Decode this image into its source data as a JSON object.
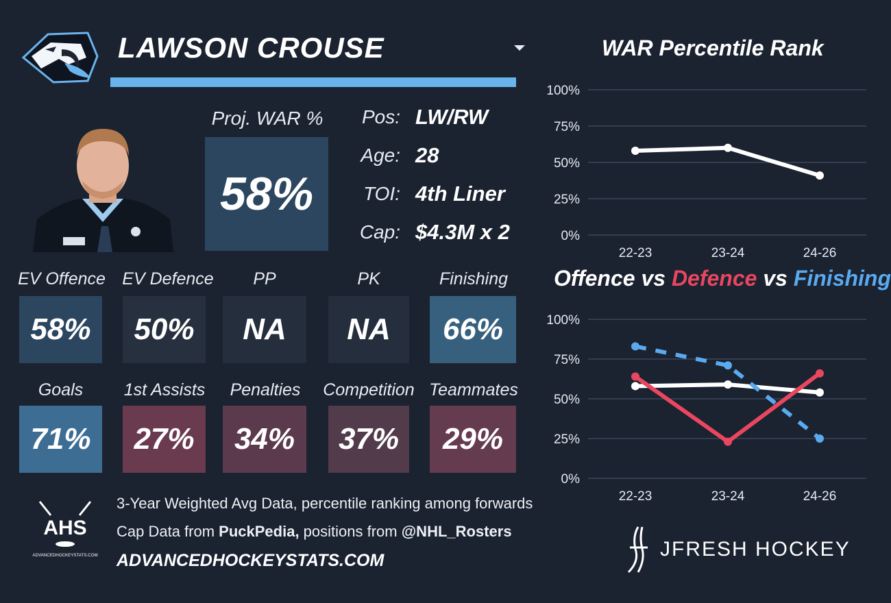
{
  "player": {
    "name": "LAWSON CROUSE",
    "proj_war_label": "Proj. WAR %",
    "proj_war_value": "58%",
    "info": [
      {
        "label": "Pos:",
        "value": "LW/RW"
      },
      {
        "label": "Age:",
        "value": "28"
      },
      {
        "label": "TOI:",
        "value": "4th Liner"
      },
      {
        "label": "Cap:",
        "value": "$4.3M x 2"
      }
    ]
  },
  "tiles_row1": [
    {
      "label": "EV Offence",
      "value": "58%",
      "color": "#2c4660"
    },
    {
      "label": "EV Defence",
      "value": "50%",
      "color": "#26303f"
    },
    {
      "label": "PP",
      "value": "NA",
      "color": "#242e3d"
    },
    {
      "label": "PK",
      "value": "NA",
      "color": "#242e3d"
    },
    {
      "label": "Finishing",
      "value": "66%",
      "color": "#37607f"
    }
  ],
  "tiles_row2": [
    {
      "label": "Goals",
      "value": "71%",
      "color": "#3d6d93"
    },
    {
      "label": "1st Assists",
      "value": "27%",
      "color": "#6a3a4e"
    },
    {
      "label": "Penalties",
      "value": "34%",
      "color": "#5a3a4c"
    },
    {
      "label": "Competition",
      "value": "37%",
      "color": "#523b4a"
    },
    {
      "label": "Teammates",
      "value": "29%",
      "color": "#653b4f"
    }
  ],
  "footer": {
    "line1": "3-Year Weighted Avg Data, percentile ranking among forwards",
    "line2_prefix": "Cap Data from ",
    "line2_source1": "PuckPedia,",
    "line2_middle": " positions from ",
    "line2_source2": "@NHL_Rosters",
    "site": "ADVANCEDHOCKEYSTATS.COM",
    "ahs_logo_text": "AHS",
    "ahs_logo_subtext": "ADVANCEDHOCKEYSTATS.COM",
    "brand": "JFRESH HOCKEY"
  },
  "chart1_title": "WAR Percentile Rank",
  "chart2_title": {
    "part1": "Offence",
    "vs1": " vs ",
    "part2": "Defence",
    "vs2": " vs ",
    "part3": "Finishing"
  },
  "colors": {
    "offence": "#ffffff",
    "defence": "#e8475f",
    "finishing": "#5aaaf0",
    "accent": "#6ab4ee"
  },
  "chart_data": [
    {
      "type": "line",
      "title": "WAR Percentile Rank",
      "x": [
        "22-23",
        "23-24",
        "24-26"
      ],
      "yticks": [
        "100%",
        "75%",
        "50%",
        "25%",
        "0%"
      ],
      "ylim": [
        0,
        100
      ],
      "grid": true,
      "series": [
        {
          "values": [
            58,
            60,
            41
          ],
          "color": "#ffffff",
          "dash": false
        }
      ]
    },
    {
      "type": "line",
      "title": "Offence vs Defence vs Finishing",
      "x": [
        "22-23",
        "23-24",
        "24-26"
      ],
      "yticks": [
        "100%",
        "75%",
        "50%",
        "25%",
        "0%"
      ],
      "ylim": [
        0,
        100
      ],
      "grid": true,
      "series": [
        {
          "name": "Offence",
          "values": [
            58,
            59,
            54
          ],
          "color": "#ffffff",
          "dash": false
        },
        {
          "name": "Defence",
          "values": [
            64,
            23,
            66
          ],
          "color": "#e8475f",
          "dash": false
        },
        {
          "name": "Finishing",
          "values": [
            83,
            71,
            25
          ],
          "color": "#5aaaf0",
          "dash": true
        }
      ]
    }
  ]
}
